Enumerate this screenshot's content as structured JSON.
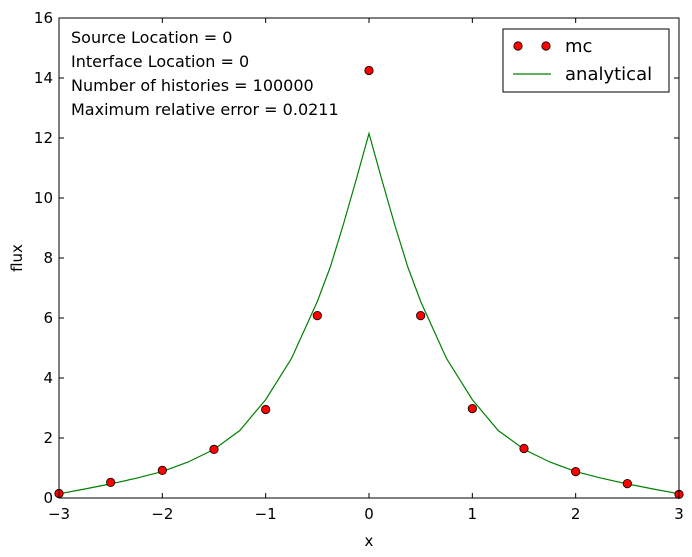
{
  "chart_data": {
    "type": "line",
    "xlabel": "x",
    "ylabel": "flux",
    "xlim": [
      -3,
      3
    ],
    "ylim": [
      0,
      16
    ],
    "x_ticks": [
      -3,
      -2,
      -1,
      0,
      1,
      2,
      3
    ],
    "x_tick_labels": [
      "−3",
      "−2",
      "−1",
      "0",
      "1",
      "2",
      "3"
    ],
    "y_ticks": [
      0,
      2,
      4,
      6,
      8,
      10,
      12,
      14,
      16
    ],
    "y_tick_labels": [
      "0",
      "2",
      "4",
      "6",
      "8",
      "10",
      "12",
      "14",
      "16"
    ],
    "grid": false,
    "legend_position": "top-right",
    "annotations": [
      "Source Location = 0",
      "Interface Location = 0",
      "Number of histories = 100000",
      "Maximum relative error = 0.0211"
    ],
    "series": [
      {
        "name": "mc",
        "kind": "scatter",
        "color": "#ff0000",
        "edge_color": "#000000",
        "x": [
          -3,
          -2.5,
          -2,
          -1.5,
          -1,
          -0.5,
          0,
          0.5,
          1,
          1.5,
          2,
          2.5,
          3
        ],
        "y": [
          0.15,
          0.52,
          0.92,
          1.62,
          2.95,
          6.08,
          14.25,
          6.08,
          2.98,
          1.65,
          0.88,
          0.48,
          0.12
        ]
      },
      {
        "name": "analytical",
        "kind": "line",
        "color": "#008000",
        "x": [
          -3,
          -2.75,
          -2.5,
          -2.25,
          -2,
          -1.75,
          -1.5,
          -1.25,
          -1,
          -0.75,
          -0.5,
          -0.375,
          -0.25,
          -0.125,
          0,
          0.125,
          0.25,
          0.375,
          0.5,
          0.75,
          1,
          1.25,
          1.5,
          1.75,
          2,
          2.25,
          2.5,
          2.75,
          3
        ],
        "y": [
          0.14,
          0.3,
          0.47,
          0.66,
          0.88,
          1.2,
          1.62,
          2.25,
          3.28,
          4.65,
          6.55,
          7.7,
          9.1,
          10.6,
          12.15,
          10.6,
          9.1,
          7.7,
          6.55,
          4.65,
          3.28,
          2.25,
          1.62,
          1.2,
          0.88,
          0.66,
          0.47,
          0.3,
          0.14
        ]
      }
    ]
  }
}
